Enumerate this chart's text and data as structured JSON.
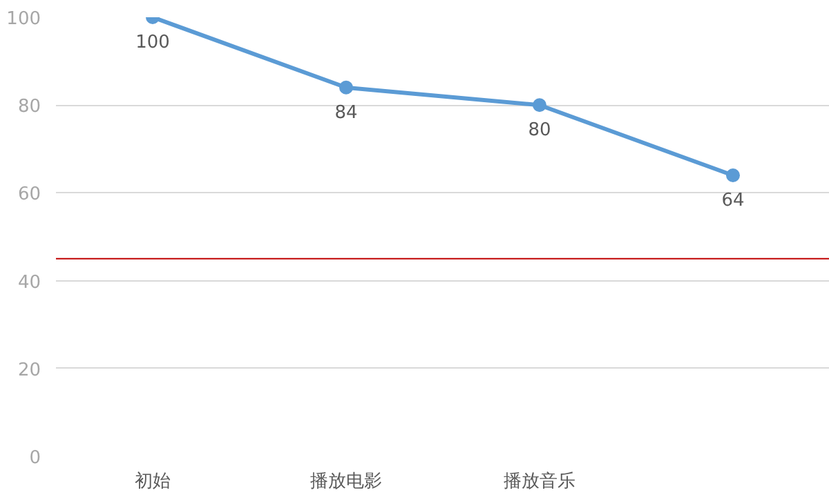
{
  "chart_data": {
    "type": "line",
    "categories": [
      "初始",
      "播放电影",
      "播放音乐",
      null
    ],
    "series": [
      {
        "color": "#5b9bd5",
        "values": [
          100,
          84,
          80,
          64
        ]
      }
    ],
    "ylim": [
      0,
      100
    ],
    "yticks": [
      0,
      20,
      40,
      60,
      80,
      100
    ],
    "grid": "y",
    "marker": "circle",
    "line_style": "solid",
    "data_labels": true,
    "ref_lines": [
      {
        "axis": "y",
        "value": 45,
        "color": "#c00000"
      }
    ]
  }
}
